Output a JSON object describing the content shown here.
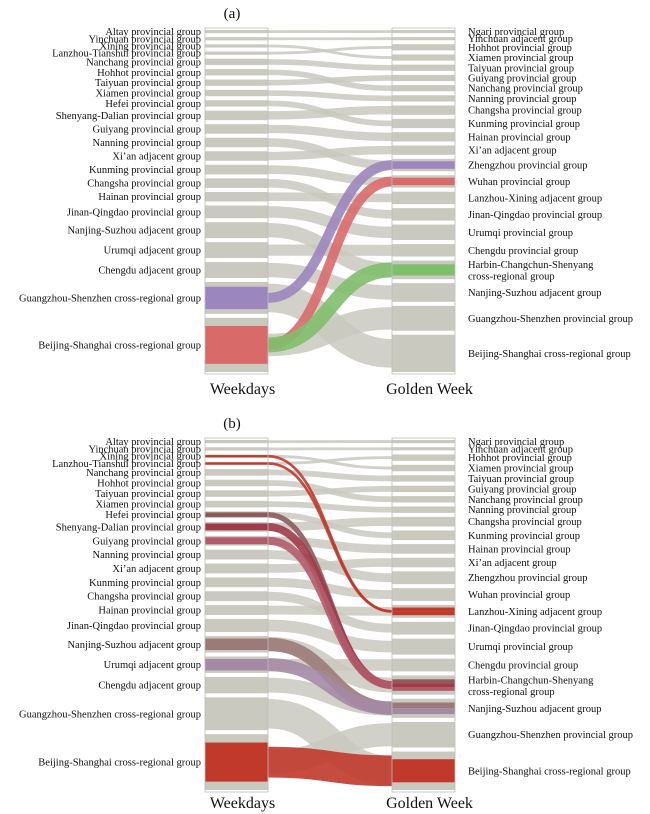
{
  "panels": [
    {
      "label": "(a)",
      "axis_left": "Weekdays",
      "axis_right": "Golden Week",
      "left_nodes": [
        {
          "name": "Altay provincial group",
          "value": 1
        },
        {
          "name": "Yinchuan provincial group",
          "value": 1
        },
        {
          "name": "Xining provincial group",
          "value": 1
        },
        {
          "name": "Lanzhou-Tianshui provincial group",
          "value": 1
        },
        {
          "name": "Nanchang provincial group",
          "value": 2
        },
        {
          "name": "Hohhot provincial group",
          "value": 2
        },
        {
          "name": "Taiyuan provincial group",
          "value": 2
        },
        {
          "name": "Xiamen provincial group",
          "value": 2
        },
        {
          "name": "Hefei provincial group",
          "value": 2
        },
        {
          "name": "Shenyang-Dalian provincial group",
          "value": 3
        },
        {
          "name": "Guiyang provincial group",
          "value": 3
        },
        {
          "name": "Nanning provincial group",
          "value": 3
        },
        {
          "name": "Xi’an adjacent group",
          "value": 3
        },
        {
          "name": "Kunming provincial group",
          "value": 3
        },
        {
          "name": "Changsha provincial group",
          "value": 3
        },
        {
          "name": "Hainan provincial group",
          "value": 3
        },
        {
          "name": "Jinan-Qingdao provincial group",
          "value": 4
        },
        {
          "name": "Nanjing-Suzhou adjacent group",
          "value": 5
        },
        {
          "name": "Urumqi adjacent group",
          "value": 5
        },
        {
          "name": "Chengdu adjacent group",
          "value": 5
        },
        {
          "name": "Guangzhou-Shenzhen cross-regional group",
          "value": 10
        },
        {
          "name": "Beijing-Shanghai cross-regional group",
          "value": 17
        }
      ],
      "right_nodes": [
        {
          "name": "Ngari provincial group",
          "value": 1
        },
        {
          "name": "Yinchuan adjacent group",
          "value": 1
        },
        {
          "name": "Hohhot provincial group",
          "value": 2
        },
        {
          "name": "Xiamen provincial group",
          "value": 2
        },
        {
          "name": "Taiyuan provincial group",
          "value": 2
        },
        {
          "name": "Guiyang provincial group",
          "value": 2
        },
        {
          "name": "Nanchang provincial group",
          "value": 2
        },
        {
          "name": "Nanning provincial group",
          "value": 2
        },
        {
          "name": "Changsha provincial group",
          "value": 3
        },
        {
          "name": "Kunming provincial group",
          "value": 3
        },
        {
          "name": "Hainan provincial group",
          "value": 3
        },
        {
          "name": "Xi’an adjacent group",
          "value": 3
        },
        {
          "name": "Zhengzhou provincial group",
          "value": 4
        },
        {
          "name": "Wuhan provincial group",
          "value": 4
        },
        {
          "name": "Lanzhou-Xining adjacent group",
          "value": 4
        },
        {
          "name": "Jinan-Qingdao provincial group",
          "value": 4
        },
        {
          "name": "Urumqi provincial group",
          "value": 5
        },
        {
          "name": "Chengdu provincial group",
          "value": 4
        },
        {
          "name": "Harbin-Changchun-Shenyang cross-regional group",
          "value": 6
        },
        {
          "name": "Nanjing-Suzhou adjacent group",
          "value": 6
        },
        {
          "name": "Guangzhou-Shenzhen provincial group",
          "value": 8
        },
        {
          "name": "Beijing-Shanghai cross-regional group",
          "value": 12
        }
      ],
      "highlights": [
        {
          "from": 20,
          "to": 12,
          "color": "#9b86be"
        },
        {
          "from": 21,
          "to": 13,
          "color": "#d96a6a"
        },
        {
          "from": 21,
          "to": 18,
          "color": "#7fbf6a"
        }
      ]
    },
    {
      "label": "(b)",
      "axis_left": "Weekdays",
      "axis_right": "Golden Week",
      "left_nodes": [
        {
          "name": "Altay provincial group",
          "value": 1
        },
        {
          "name": "Yinchuan provincial group",
          "value": 1
        },
        {
          "name": "Xining provincial group",
          "value": 1
        },
        {
          "name": "Lanzhou-Tianshui provincial group",
          "value": 1
        },
        {
          "name": "Nanchang provincial group",
          "value": 2
        },
        {
          "name": "Hohhot provincial group",
          "value": 2
        },
        {
          "name": "Taiyuan provincial group",
          "value": 2
        },
        {
          "name": "Xiamen provincial group",
          "value": 2
        },
        {
          "name": "Hefei provincial group",
          "value": 2
        },
        {
          "name": "Shenyang-Dalian provincial group",
          "value": 3
        },
        {
          "name": "Guiyang provincial group",
          "value": 3
        },
        {
          "name": "Nanning provincial group",
          "value": 3
        },
        {
          "name": "Xi’an adjacent group",
          "value": 3
        },
        {
          "name": "Kunming provincial group",
          "value": 3
        },
        {
          "name": "Changsha provincial group",
          "value": 3
        },
        {
          "name": "Hainan provincial group",
          "value": 3
        },
        {
          "name": "Jinan-Qingdao provincial group",
          "value": 4
        },
        {
          "name": "Nanjing-Suzhou adjacent group",
          "value": 5
        },
        {
          "name": "Urumqi adjacent group",
          "value": 5
        },
        {
          "name": "Chengdu adjacent group",
          "value": 5
        },
        {
          "name": "Guangzhou-Shenzhen cross-regional group",
          "value": 10
        },
        {
          "name": "Beijing-Shanghai cross-regional group",
          "value": 17
        }
      ],
      "right_nodes": [
        {
          "name": "Ngari provincial group",
          "value": 1
        },
        {
          "name": "Yinchuan adjacent group",
          "value": 1
        },
        {
          "name": "Hohhot provincial group",
          "value": 2
        },
        {
          "name": "Xiamen provincial group",
          "value": 2
        },
        {
          "name": "Taiyuan provincial group",
          "value": 2
        },
        {
          "name": "Guiyang provincial group",
          "value": 2
        },
        {
          "name": "Nanchang provincial group",
          "value": 2
        },
        {
          "name": "Nanning provincial group",
          "value": 2
        },
        {
          "name": "Changsha provincial group",
          "value": 3
        },
        {
          "name": "Kunming provincial group",
          "value": 3
        },
        {
          "name": "Hainan provincial group",
          "value": 3
        },
        {
          "name": "Xi’an adjacent group",
          "value": 3
        },
        {
          "name": "Zhengzhou provincial group",
          "value": 4
        },
        {
          "name": "Wuhan provincial group",
          "value": 4
        },
        {
          "name": "Lanzhou-Xining adjacent group",
          "value": 4
        },
        {
          "name": "Jinan-Qingdao provincial group",
          "value": 4
        },
        {
          "name": "Urumqi provincial group",
          "value": 5
        },
        {
          "name": "Chengdu provincial group",
          "value": 4
        },
        {
          "name": "Harbin-Changchun-Shenyang cross-regional group",
          "value": 6
        },
        {
          "name": "Nanjing-Suzhou adjacent group",
          "value": 6
        },
        {
          "name": "Guangzhou-Shenzhen provincial group",
          "value": 8
        },
        {
          "name": "Beijing-Shanghai cross-regional group",
          "value": 12
        }
      ],
      "highlights": [
        {
          "from": 2,
          "to": 14,
          "color": "#c0392b"
        },
        {
          "from": 3,
          "to": 14,
          "color": "#c0392b"
        },
        {
          "from": 8,
          "to": 18,
          "color": "#8e5a5a"
        },
        {
          "from": 9,
          "to": 18,
          "color": "#9e3b4a"
        },
        {
          "from": 10,
          "to": 18,
          "color": "#b35a6a"
        },
        {
          "from": 17,
          "to": 19,
          "color": "#9b7a78"
        },
        {
          "from": 18,
          "to": 19,
          "color": "#a58aa5"
        },
        {
          "from": 21,
          "to": 21,
          "color": "#c0392b"
        }
      ]
    }
  ]
}
